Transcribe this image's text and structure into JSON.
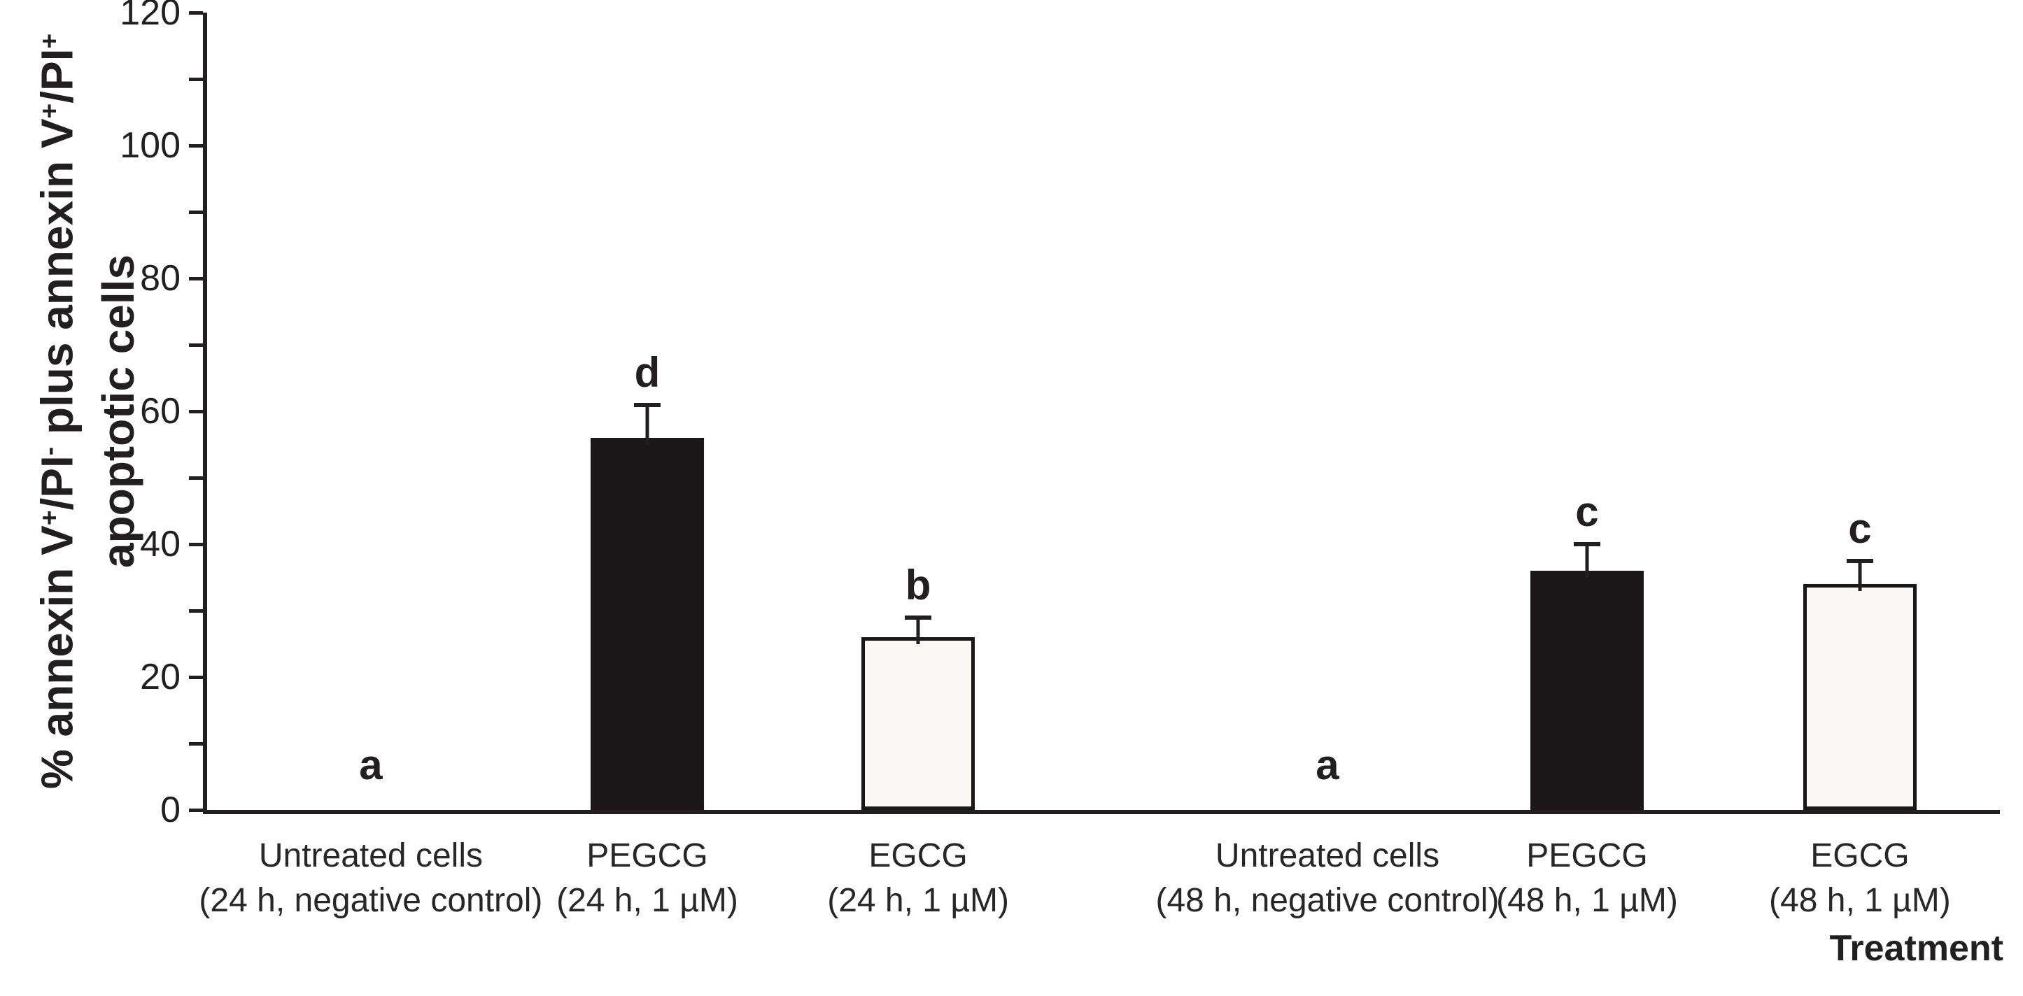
{
  "figure": {
    "background": "#ffffff",
    "text_color": "#231f20",
    "axis_color": "#231f20"
  },
  "chart_data": {
    "type": "bar",
    "title": "",
    "xlabel": "Treatment",
    "ylabel_line1_segments": [
      {
        "text": "% annexin V",
        "sup": false
      },
      {
        "text": "+",
        "sup": true
      },
      {
        "text": "/PI",
        "sup": false
      },
      {
        "text": "-",
        "sup": true
      },
      {
        "text": " plus annexin V",
        "sup": false
      },
      {
        "text": "+",
        "sup": true
      },
      {
        "text": "/PI",
        "sup": false
      },
      {
        "text": "+",
        "sup": true
      }
    ],
    "ylabel_line2": "apoptotic cells",
    "ylabel_plain": "% annexin V+/PI- plus annexin V+/PI+ apoptotic cells",
    "ylim": [
      0,
      120
    ],
    "ytick_labeled": [
      0,
      20,
      40,
      60,
      80,
      100,
      120
    ],
    "ytick_minor": [
      10,
      30,
      50,
      70,
      90,
      110
    ],
    "grid": false,
    "legend": "none",
    "bar_style": {
      "black_fill": "#1b1718",
      "white_fill": "#faf8f5",
      "border": "#1b1718"
    },
    "categories": [
      "Untreated cells (24 h, negative control)",
      "PEGCG (24 h, 1 µM)",
      "EGCG (24 h, 1 µM)",
      "Untreated cells (48 h, negative control)",
      "PEGCG (48 h, 1 µM)",
      "EGCG (48 h, 1 µM)"
    ],
    "bars": [
      {
        "label_line1": "Untreated cells",
        "label_line2": "(24 h, negative control)",
        "value": 0,
        "error": 0,
        "sig_letter": "a",
        "fill": "none",
        "center_frac": 0.0913
      },
      {
        "label_line1": "PEGCG",
        "label_line2": "(24 h, 1 µM)",
        "value": 56,
        "error": 5,
        "sig_letter": "d",
        "fill": "black",
        "center_frac": 0.2455
      },
      {
        "label_line1": "EGCG",
        "label_line2": "(24 h, 1 µM)",
        "value": 26,
        "error": 3,
        "sig_letter": "b",
        "fill": "white",
        "center_frac": 0.3966
      },
      {
        "label_line1": "Untreated cells",
        "label_line2": "(48 h, negative control)",
        "value": 0,
        "error": 0,
        "sig_letter": "a",
        "fill": "none",
        "center_frac": 0.6249
      },
      {
        "label_line1": "PEGCG",
        "label_line2": "(48 h, 1 µM)",
        "value": 36,
        "error": 4,
        "sig_letter": "c",
        "fill": "black",
        "center_frac": 0.7697
      },
      {
        "label_line1": "EGCG",
        "label_line2": "(48 h, 1 µM)",
        "value": 34,
        "error": 3.5,
        "sig_letter": "c",
        "fill": "white",
        "center_frac": 0.9219
      }
    ]
  }
}
